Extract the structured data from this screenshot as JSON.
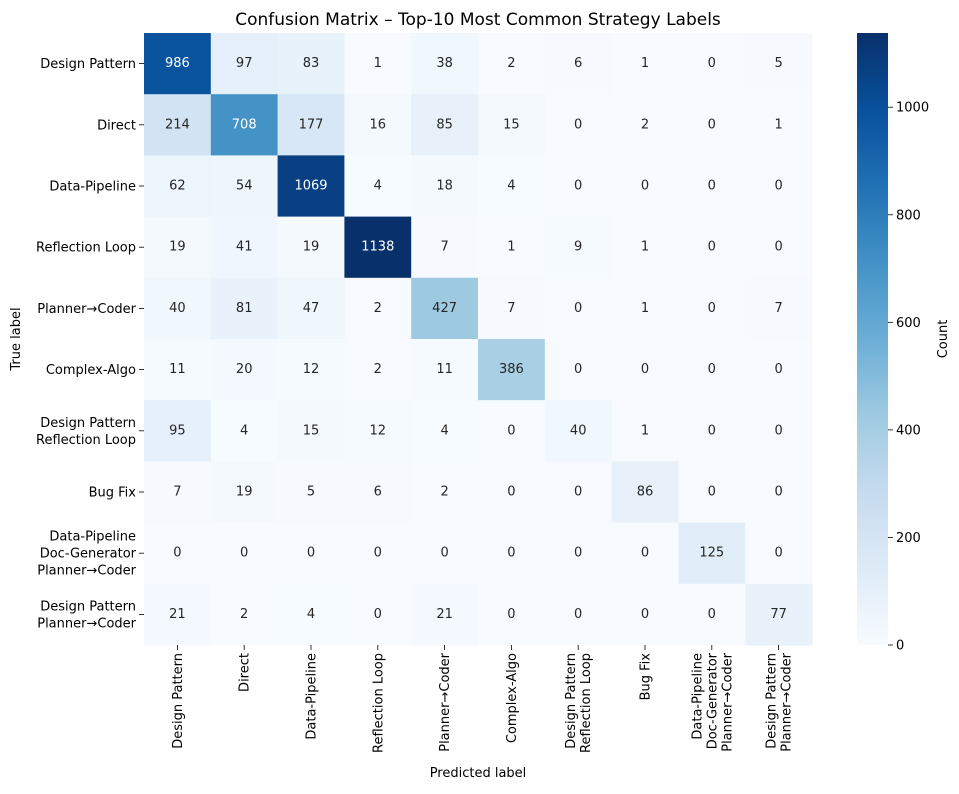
{
  "chart_data": {
    "type": "heatmap",
    "title": "Confusion Matrix – Top-10 Most Common Strategy Labels",
    "xlabel": "Predicted label",
    "ylabel": "True label",
    "row_labels": [
      [
        "Design Pattern"
      ],
      [
        "Direct"
      ],
      [
        "Data-Pipeline"
      ],
      [
        "Reflection Loop"
      ],
      [
        "Planner→Coder"
      ],
      [
        "Complex-Algo"
      ],
      [
        "Design Pattern",
        "Reflection Loop"
      ],
      [
        "Bug Fix"
      ],
      [
        "Data-Pipeline",
        "Doc-Generator",
        "Planner→Coder"
      ],
      [
        "Design Pattern",
        "Planner→Coder"
      ]
    ],
    "col_labels": [
      [
        "Design Pattern"
      ],
      [
        "Direct"
      ],
      [
        "Data-Pipeline"
      ],
      [
        "Reflection Loop"
      ],
      [
        "Planner→Coder"
      ],
      [
        "Complex-Algo"
      ],
      [
        "Design Pattern",
        "Reflection Loop"
      ],
      [
        "Bug Fix"
      ],
      [
        "Data-Pipeline",
        "Doc-Generator",
        "Planner→Coder"
      ],
      [
        "Design Pattern",
        "Planner→Coder"
      ]
    ],
    "values": [
      [
        986,
        97,
        83,
        1,
        38,
        2,
        6,
        1,
        0,
        5
      ],
      [
        214,
        708,
        177,
        16,
        85,
        15,
        0,
        2,
        0,
        1
      ],
      [
        62,
        54,
        1069,
        4,
        18,
        4,
        0,
        0,
        0,
        0
      ],
      [
        19,
        41,
        19,
        1138,
        7,
        1,
        9,
        1,
        0,
        0
      ],
      [
        40,
        81,
        47,
        2,
        427,
        7,
        0,
        1,
        0,
        7
      ],
      [
        11,
        20,
        12,
        2,
        11,
        386,
        0,
        0,
        0,
        0
      ],
      [
        95,
        4,
        15,
        12,
        4,
        0,
        40,
        1,
        0,
        0
      ],
      [
        7,
        19,
        5,
        6,
        2,
        0,
        0,
        86,
        0,
        0
      ],
      [
        0,
        0,
        0,
        0,
        0,
        0,
        0,
        0,
        125,
        0
      ],
      [
        21,
        2,
        4,
        0,
        21,
        0,
        0,
        0,
        0,
        77
      ]
    ],
    "colormap": "Blues",
    "vmin": 0,
    "vmax": 1138,
    "colorbar": {
      "label": "Count",
      "ticks": [
        0,
        200,
        400,
        600,
        800,
        1000
      ]
    },
    "grid": false,
    "legend": "colorbar-right"
  }
}
